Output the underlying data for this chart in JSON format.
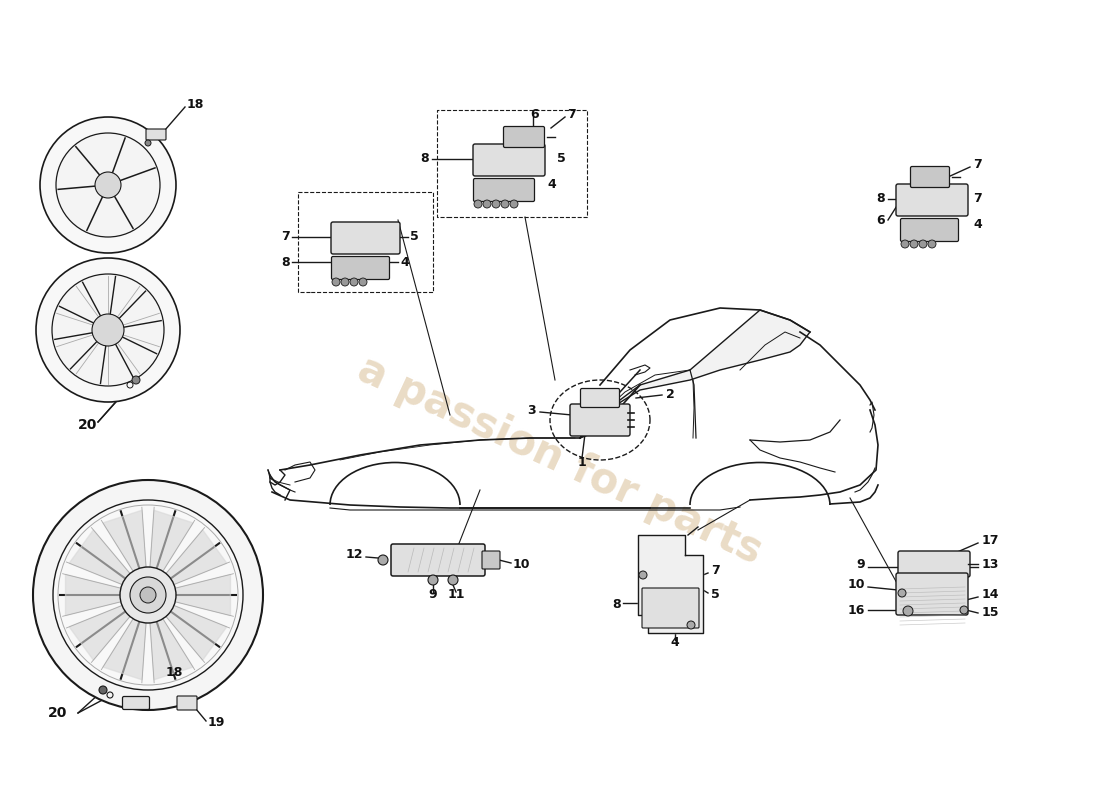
{
  "bg_color": "#ffffff",
  "line_color": "#1a1a1a",
  "light_line_color": "#aaaaaa",
  "label_color": "#111111",
  "fill_light": "#f0f0f0",
  "fill_part": "#e0e0e0",
  "fill_dark": "#c8c8c8",
  "watermark_color": "#e8d8c0",
  "fig_width": 11.0,
  "fig_height": 8.0
}
